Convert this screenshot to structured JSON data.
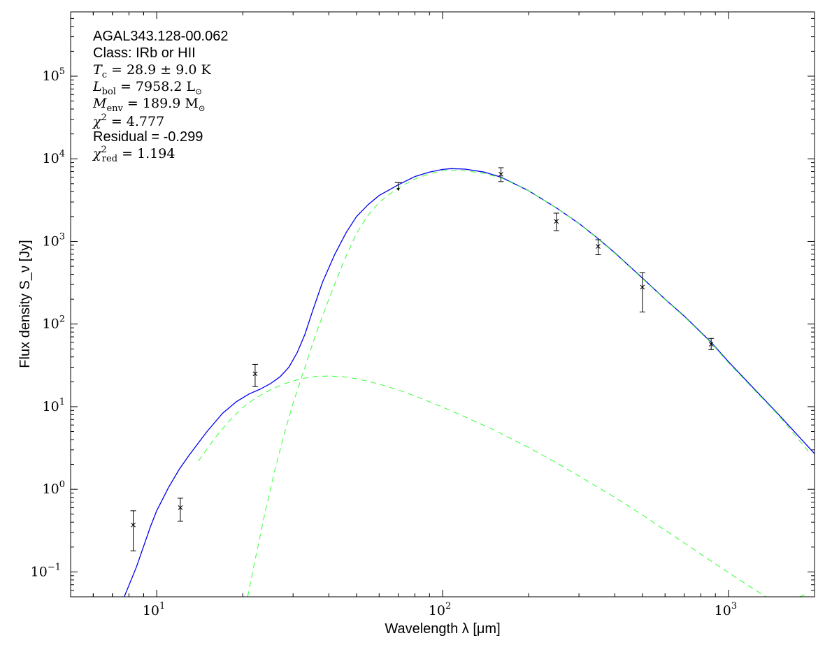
{
  "chart_data": {
    "type": "line",
    "xscale": "log",
    "yscale": "log",
    "xlim": [
      5,
      2000
    ],
    "ylim": [
      0.05,
      600000
    ],
    "grid": false,
    "xlabel": "Wavelength λ [μm]",
    "ylabel": "Flux density S_ν [Jy]",
    "x_ticks": [
      {
        "value": 10,
        "base": "10",
        "exp": "1"
      },
      {
        "value": 100,
        "base": "10",
        "exp": "2"
      },
      {
        "value": 1000,
        "base": "10",
        "exp": "3"
      }
    ],
    "y_ticks": [
      {
        "value": 0.1,
        "base": "10",
        "exp": "−1"
      },
      {
        "value": 1,
        "base": "10",
        "exp": "0"
      },
      {
        "value": 10,
        "base": "10",
        "exp": "1"
      },
      {
        "value": 100,
        "base": "10",
        "exp": "2"
      },
      {
        "value": 1000,
        "base": "10",
        "exp": "3"
      },
      {
        "value": 10000,
        "base": "10",
        "exp": "4"
      },
      {
        "value": 100000,
        "base": "10",
        "exp": "5"
      }
    ],
    "annotations": {
      "source": "AGAL343.128-00.062",
      "class": "Class: IRb or HII",
      "tc": {
        "sym": "T",
        "sub": "c",
        "text": " = 28.9 ± 9.0 K"
      },
      "lbol": {
        "sym": "L",
        "sub": "bol",
        "text": " = 7958.2 L",
        "sub2": "⊙"
      },
      "menv": {
        "sym": "M",
        "sub": "env",
        "text": " = 189.9 M",
        "sub2": "⊙"
      },
      "chi2": {
        "sym": "χ",
        "sup": "2",
        "text": " = 4.777"
      },
      "residual": "Residual = -0.299",
      "chi2red": {
        "sym": "χ",
        "sup": "2",
        "sub": "red",
        "text": " = 1.194"
      }
    },
    "data_points": [
      {
        "x": 8.28,
        "y": 0.37,
        "ylo": 0.18,
        "yhi": 0.55
      },
      {
        "x": 12.1,
        "y": 0.6,
        "ylo": 0.41,
        "yhi": 0.78
      },
      {
        "x": 22.1,
        "y": 25,
        "ylo": 17.5,
        "yhi": 32.5
      },
      {
        "x": 70,
        "y": 4500,
        "upper_limit": true
      },
      {
        "x": 160,
        "y": 6500,
        "ylo": 5300,
        "yhi": 7800
      },
      {
        "x": 250,
        "y": 1750,
        "ylo": 1350,
        "yhi": 2200
      },
      {
        "x": 350,
        "y": 870,
        "ylo": 690,
        "yhi": 1050
      },
      {
        "x": 500,
        "y": 280,
        "ylo": 140,
        "yhi": 420
      },
      {
        "x": 870,
        "y": 57,
        "ylo": 49,
        "yhi": 67
      }
    ],
    "series": [
      {
        "style": "solid",
        "color": "#0000ee",
        "x": [
          7.7,
          8.5,
          9.5,
          10,
          11,
          12,
          13,
          15,
          17,
          19,
          21,
          23,
          25,
          27,
          29,
          31,
          33,
          35,
          38,
          42,
          46,
          50,
          55,
          60,
          65,
          70,
          80,
          90,
          100,
          107,
          120,
          140,
          160,
          200,
          250,
          300,
          350,
          400,
          500,
          600,
          700,
          870,
          1000,
          1200,
          1500,
          2000
        ],
        "y": [
          0.05,
          0.115,
          0.35,
          0.55,
          1.05,
          1.75,
          2.6,
          5.0,
          8.3,
          11.5,
          14.2,
          16.3,
          19.0,
          23.0,
          30.0,
          45.0,
          75.0,
          140.0,
          320.0,
          700.0,
          1280.0,
          2000.0,
          2800.0,
          3600.0,
          4200.0,
          4850.0,
          6100.0,
          6900.0,
          7450.0,
          7600.0,
          7500.0,
          6900.0,
          6000.0,
          4100.0,
          2550.0,
          1650.0,
          1080.0,
          730.0,
          360.0,
          200.0,
          125.0,
          60.0,
          35.0,
          18.0,
          8.0,
          2.7
        ]
      },
      {
        "style": "dashed",
        "color": "#44ff44",
        "x": [
          20.8,
          22,
          24,
          26,
          28,
          30,
          33,
          36,
          40,
          45,
          50,
          55,
          60,
          65,
          70,
          80,
          90,
          100,
          107,
          120,
          140,
          160,
          200,
          250,
          300,
          350,
          400,
          500,
          600,
          700,
          870,
          1000,
          1200,
          1500,
          1900
        ],
        "y": [
          0.05,
          0.13,
          0.55,
          1.8,
          4.8,
          11.0,
          30.0,
          75.0,
          200.0,
          560.0,
          1250.0,
          2100.0,
          2950.0,
          3700.0,
          4450.0,
          5700.0,
          6600.0,
          7150.0,
          7300.0,
          7200.0,
          6650.0,
          5900.0,
          4100.0,
          2550.0,
          1640.0,
          1070.0,
          720.0,
          355.0,
          198.0,
          123.0,
          59.0,
          34.0,
          17.5,
          7.8,
          2.9
        ]
      },
      {
        "style": "dashed",
        "color": "#44ff44",
        "x": [
          14.0,
          16,
          18,
          20,
          22,
          25,
          28,
          32,
          36,
          40,
          45,
          50,
          60,
          70,
          80,
          100,
          120,
          150,
          200,
          250,
          300,
          400,
          500,
          600,
          700,
          870,
          1000,
          1200,
          1500,
          1900
        ],
        "y": [
          2.2,
          4.2,
          6.8,
          9.8,
          12.5,
          16.0,
          19.0,
          21.8,
          23.2,
          23.5,
          23.0,
          21.8,
          18.8,
          15.9,
          13.5,
          9.9,
          7.5,
          5.3,
          3.2,
          2.1,
          1.45,
          0.8,
          0.49,
          0.32,
          0.225,
          0.135,
          0.098,
          0.065,
          0.04,
          0.055
        ]
      }
    ]
  }
}
